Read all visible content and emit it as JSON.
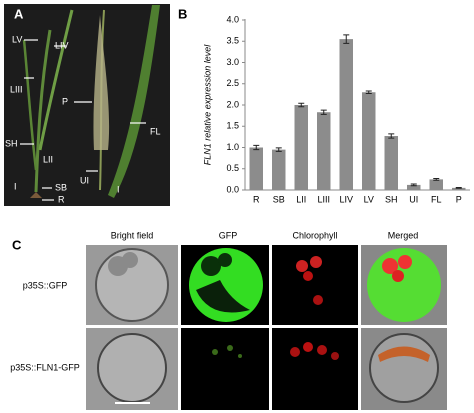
{
  "panel_a": {
    "letter": "A",
    "labels": [
      "LV",
      "LIV",
      "LIII",
      "P",
      "FL",
      "SH",
      "LII",
      "UI",
      "SB",
      "R",
      "I",
      "I"
    ]
  },
  "chart_data": {
    "type": "bar",
    "letter": "B",
    "y_label": "FLN1 relative expression level",
    "categories": [
      "R",
      "SB",
      "LII",
      "LIII",
      "LIV",
      "LV",
      "SH",
      "UI",
      "FL",
      "P"
    ],
    "values": [
      1.0,
      0.95,
      2.0,
      1.83,
      3.55,
      2.3,
      1.27,
      0.12,
      0.25,
      0.05
    ],
    "errors": [
      0.05,
      0.04,
      0.04,
      0.05,
      0.1,
      0.03,
      0.05,
      0.02,
      0.02,
      0.01
    ],
    "color": "#8c8c8c",
    "ylim": [
      0,
      4.0
    ],
    "yticks": [
      {
        "value": 0,
        "label": "0.0"
      },
      {
        "value": 0.5,
        "label": "0.5"
      },
      {
        "value": 1,
        "label": "1.0"
      },
      {
        "value": 1.5,
        "label": "1.5"
      },
      {
        "value": 2,
        "label": "2.0"
      },
      {
        "value": 2.5,
        "label": "2.5"
      },
      {
        "value": 3,
        "label": "3.0"
      },
      {
        "value": 3.5,
        "label": "3.5"
      },
      {
        "value": 4,
        "label": "4.0"
      }
    ]
  },
  "panel_c": {
    "letter": "C",
    "columns": [
      "Bright field",
      "GFP",
      "Chlorophyll",
      "Merged"
    ],
    "rows": [
      "p35S::GFP",
      "p35S::FLN1-GFP"
    ]
  }
}
